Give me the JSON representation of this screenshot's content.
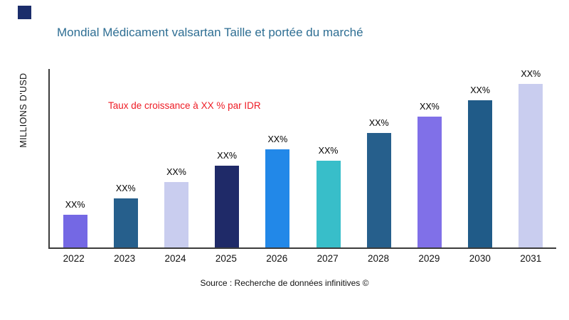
{
  "title": "Mondial Médicament valsartan Taille et portée du marché",
  "y_axis_label": "MILLIONS D'USD",
  "annotation": "Taux de croissance à XX % par IDR",
  "source": "Source : Recherche de données infinitives ©",
  "colors": {
    "logo": "#1B2D6B",
    "title": "#2E6E93",
    "annotation": "#EE1C25",
    "axis": "#3c3c3c"
  },
  "chart_data": {
    "type": "bar",
    "title": "Mondial Médicament valsartan Taille et portée du marché",
    "xlabel": "",
    "ylabel": "MILLIONS D'USD",
    "ylim": [
      0,
      100
    ],
    "grid": false,
    "legend": "none",
    "categories": [
      "2022",
      "2023",
      "2024",
      "2025",
      "2026",
      "2027",
      "2028",
      "2029",
      "2030",
      "2031"
    ],
    "values": [
      20,
      30,
      40,
      50,
      60,
      53,
      70,
      80,
      90,
      100
    ],
    "bar_labels": [
      "XX%",
      "XX%",
      "XX%",
      "XX%",
      "XX%",
      "XX%",
      "XX%",
      "XX%",
      "XX%",
      "XX%"
    ],
    "bar_colors": [
      "#7468E4",
      "#265F8C",
      "#C9CDEF",
      "#1F2A68",
      "#2288E8",
      "#38BEC9",
      "#265F8C",
      "#8070E8",
      "#205B88",
      "#C9CDEF"
    ]
  }
}
